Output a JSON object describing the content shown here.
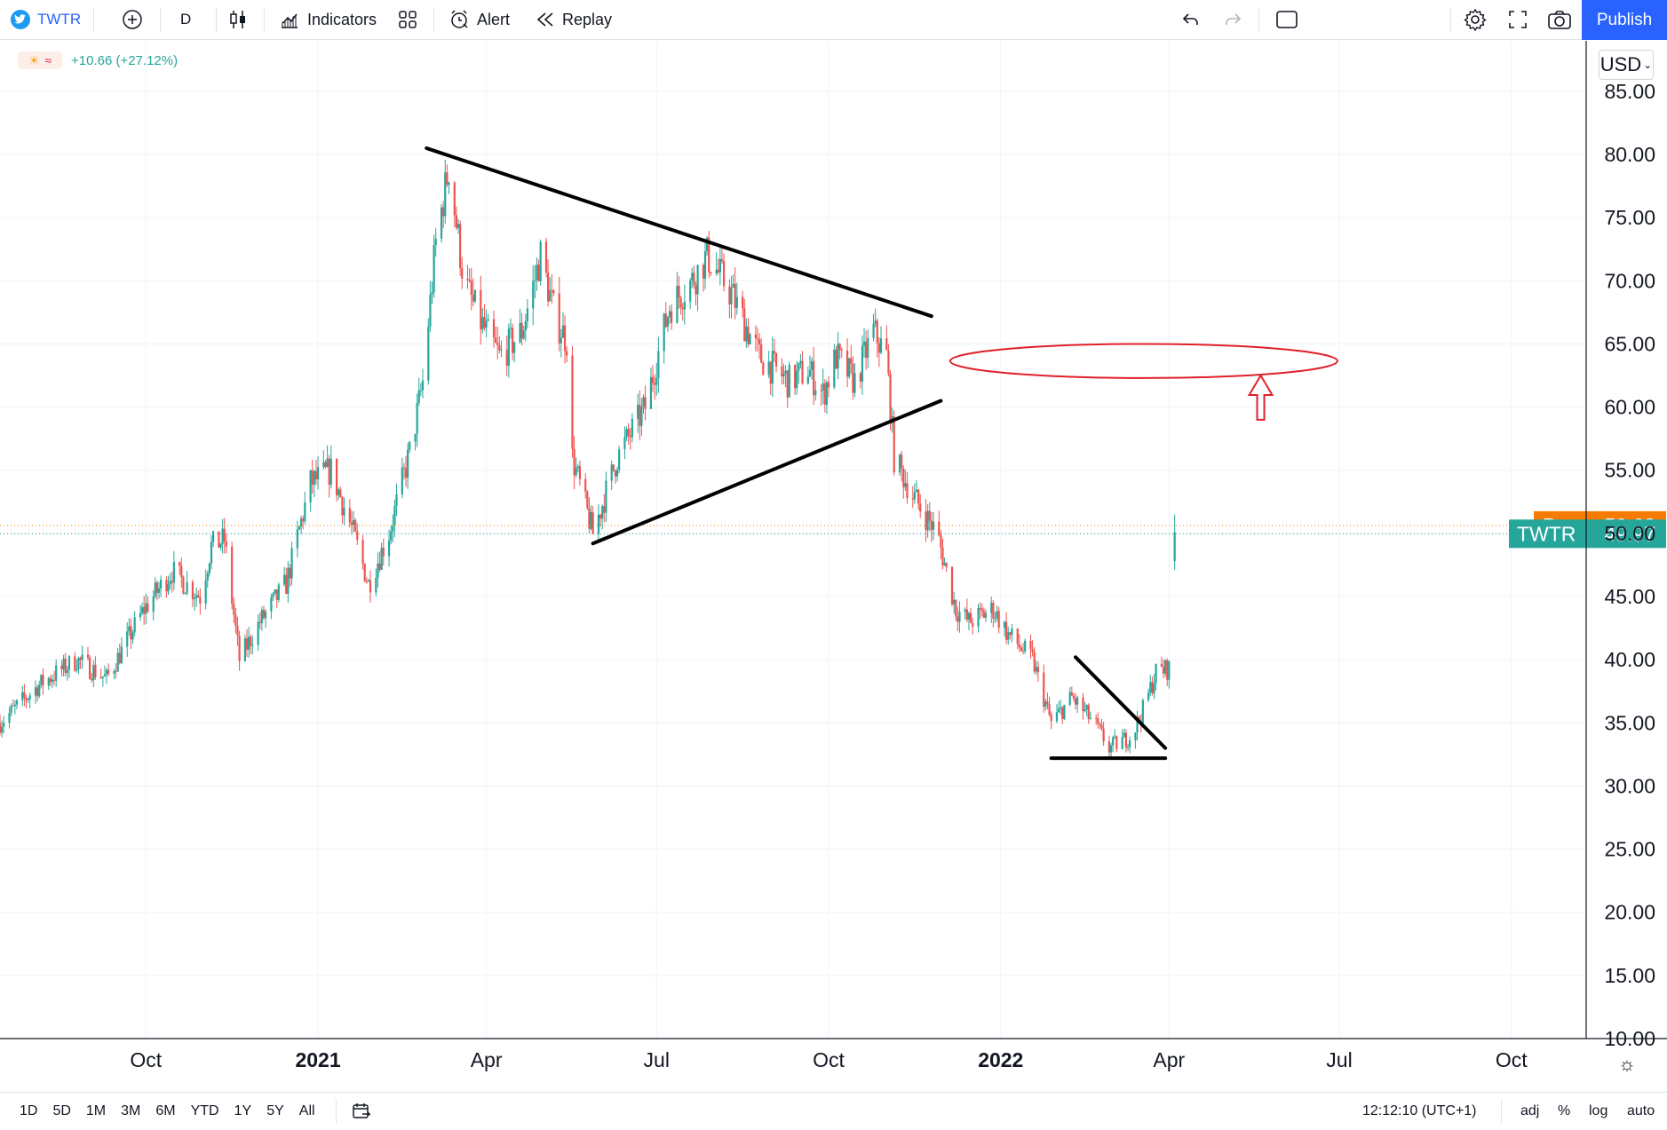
{
  "toolbar": {
    "symbol": "TWTR",
    "interval": "D",
    "indicators_label": "Indicators",
    "alert_label": "Alert",
    "replay_label": "Replay",
    "publish_label": "Publish",
    "icons": [
      "twitter-logo-icon",
      "add-symbol-icon",
      "candles-icon",
      "indicators-icon",
      "templates-icon",
      "alert-icon",
      "replay-icon",
      "undo-icon",
      "redo-icon",
      "rectangle-icon",
      "gear-icon",
      "fullscreen-icon",
      "camera-icon"
    ]
  },
  "legend": {
    "change_text": "+10.66 (+27.12%)"
  },
  "currency": "USD",
  "bottom": {
    "ranges": [
      "1D",
      "5D",
      "1M",
      "3M",
      "6M",
      "YTD",
      "1Y",
      "5Y",
      "All"
    ],
    "time": "12:12:10 (UTC+1)",
    "options": [
      "adj",
      "%",
      "log",
      "auto"
    ]
  },
  "colors": {
    "up": "#26a69a",
    "down": "#ef5350",
    "pre_badge": "#f57c00",
    "last_badge": "#26a69a",
    "zone": "#e0202a",
    "accent": "#2962ff"
  },
  "chart_data": {
    "type": "candlestick",
    "series": [
      {
        "name": "TWTR"
      }
    ],
    "x_tick_labels": [
      "Oct",
      "2021",
      "Apr",
      "Jul",
      "Oct",
      "2022",
      "Apr",
      "Jul",
      "Oct"
    ],
    "x_tick_dates": [
      "2020-10-01",
      "2021-01-01",
      "2021-04-01",
      "2021-07-01",
      "2021-10-01",
      "2022-01-01",
      "2022-04-01",
      "2022-07-01",
      "2022-10-01"
    ],
    "bold_ticks": [
      "2021",
      "2022"
    ],
    "y_ticks": [
      10,
      15,
      20,
      25,
      30,
      35,
      40,
      45,
      50,
      55,
      60,
      65,
      70,
      75,
      80,
      85
    ],
    "y_tick_labels": [
      "10.00",
      "15.00",
      "20.00",
      "25.00",
      "30.00",
      "35.00",
      "40.00",
      "45.00",
      "50.00",
      "55.00",
      "60.00",
      "65.00",
      "70.00",
      "75.00",
      "80.00",
      "85.00"
    ],
    "ylim": [
      10,
      89
    ],
    "x_range": [
      "2020-07-15",
      "2022-11-10"
    ],
    "grid": true,
    "price_path": [
      [
        "2020-07-15",
        35
      ],
      [
        "2020-08-05",
        38
      ],
      [
        "2020-08-25",
        40
      ],
      [
        "2020-09-10",
        38.5
      ],
      [
        "2020-09-30",
        44
      ],
      [
        "2020-10-15",
        47
      ],
      [
        "2020-10-30",
        45
      ],
      [
        "2020-11-05",
        49
      ],
      [
        "2020-11-12",
        49.5
      ],
      [
        "2020-11-20",
        40
      ],
      [
        "2020-12-01",
        43
      ],
      [
        "2020-12-15",
        46
      ],
      [
        "2020-12-28",
        54
      ],
      [
        "2021-01-08",
        55
      ],
      [
        "2021-01-20",
        50
      ],
      [
        "2021-01-28",
        46
      ],
      [
        "2021-02-08",
        50
      ],
      [
        "2021-02-20",
        57
      ],
      [
        "2021-02-26",
        62
      ],
      [
        "2021-03-05",
        73
      ],
      [
        "2021-03-12",
        79
      ],
      [
        "2021-03-20",
        70
      ],
      [
        "2021-03-28",
        67
      ],
      [
        "2021-04-08",
        64
      ],
      [
        "2021-04-20",
        66
      ],
      [
        "2021-04-30",
        72
      ],
      [
        "2021-05-08",
        67
      ],
      [
        "2021-05-15",
        65
      ],
      [
        "2021-05-17",
        56
      ],
      [
        "2021-05-28",
        50
      ],
      [
        "2021-06-10",
        56
      ],
      [
        "2021-06-25",
        60
      ],
      [
        "2021-07-08",
        68
      ],
      [
        "2021-07-20",
        70
      ],
      [
        "2021-07-28",
        72
      ],
      [
        "2021-08-10",
        69
      ],
      [
        "2021-08-25",
        64
      ],
      [
        "2021-09-10",
        62
      ],
      [
        "2021-09-20",
        63
      ],
      [
        "2021-09-28",
        61
      ],
      [
        "2021-10-05",
        64
      ],
      [
        "2021-10-15",
        62
      ],
      [
        "2021-10-25",
        66
      ],
      [
        "2021-11-01",
        64
      ],
      [
        "2021-11-05",
        56
      ],
      [
        "2021-11-15",
        53
      ],
      [
        "2021-11-28",
        50
      ],
      [
        "2021-12-08",
        44
      ],
      [
        "2021-12-15",
        43
      ],
      [
        "2021-12-28",
        44
      ],
      [
        "2022-01-05",
        42
      ],
      [
        "2022-01-18",
        40
      ],
      [
        "2022-01-28",
        35
      ],
      [
        "2022-02-08",
        37
      ],
      [
        "2022-02-20",
        35
      ],
      [
        "2022-02-28",
        33
      ],
      [
        "2022-03-12",
        34
      ],
      [
        "2022-03-18",
        36
      ],
      [
        "2022-03-25",
        39
      ],
      [
        "2022-04-01",
        39.31
      ],
      [
        "2022-04-04",
        49.97
      ]
    ],
    "last_price": {
      "label": "TWTR",
      "value": 49.97
    },
    "premarket": {
      "label": "Pre",
      "value": 50.63
    },
    "annotations": [
      {
        "type": "trendline",
        "from": [
          "2021-02-28",
          80.5
        ],
        "to": [
          "2021-11-25",
          67.2
        ]
      },
      {
        "type": "trendline",
        "from": [
          "2021-05-28",
          49.2
        ],
        "to": [
          "2021-11-30",
          60.5
        ]
      },
      {
        "type": "trendline",
        "from": [
          "2022-02-10",
          40.2
        ],
        "to": [
          "2022-03-30",
          33
        ]
      },
      {
        "type": "hline",
        "from": [
          "2022-01-28",
          32.2
        ],
        "to": [
          "2022-03-30",
          32.2
        ]
      },
      {
        "type": "ellipse_zone",
        "from": [
          "2021-12-05",
          65.0
        ],
        "to": [
          "2022-06-30",
          62.3
        ]
      },
      {
        "type": "up_arrow",
        "at": [
          "2022-05-20",
          59.0
        ],
        "top": 62.5
      }
    ]
  }
}
